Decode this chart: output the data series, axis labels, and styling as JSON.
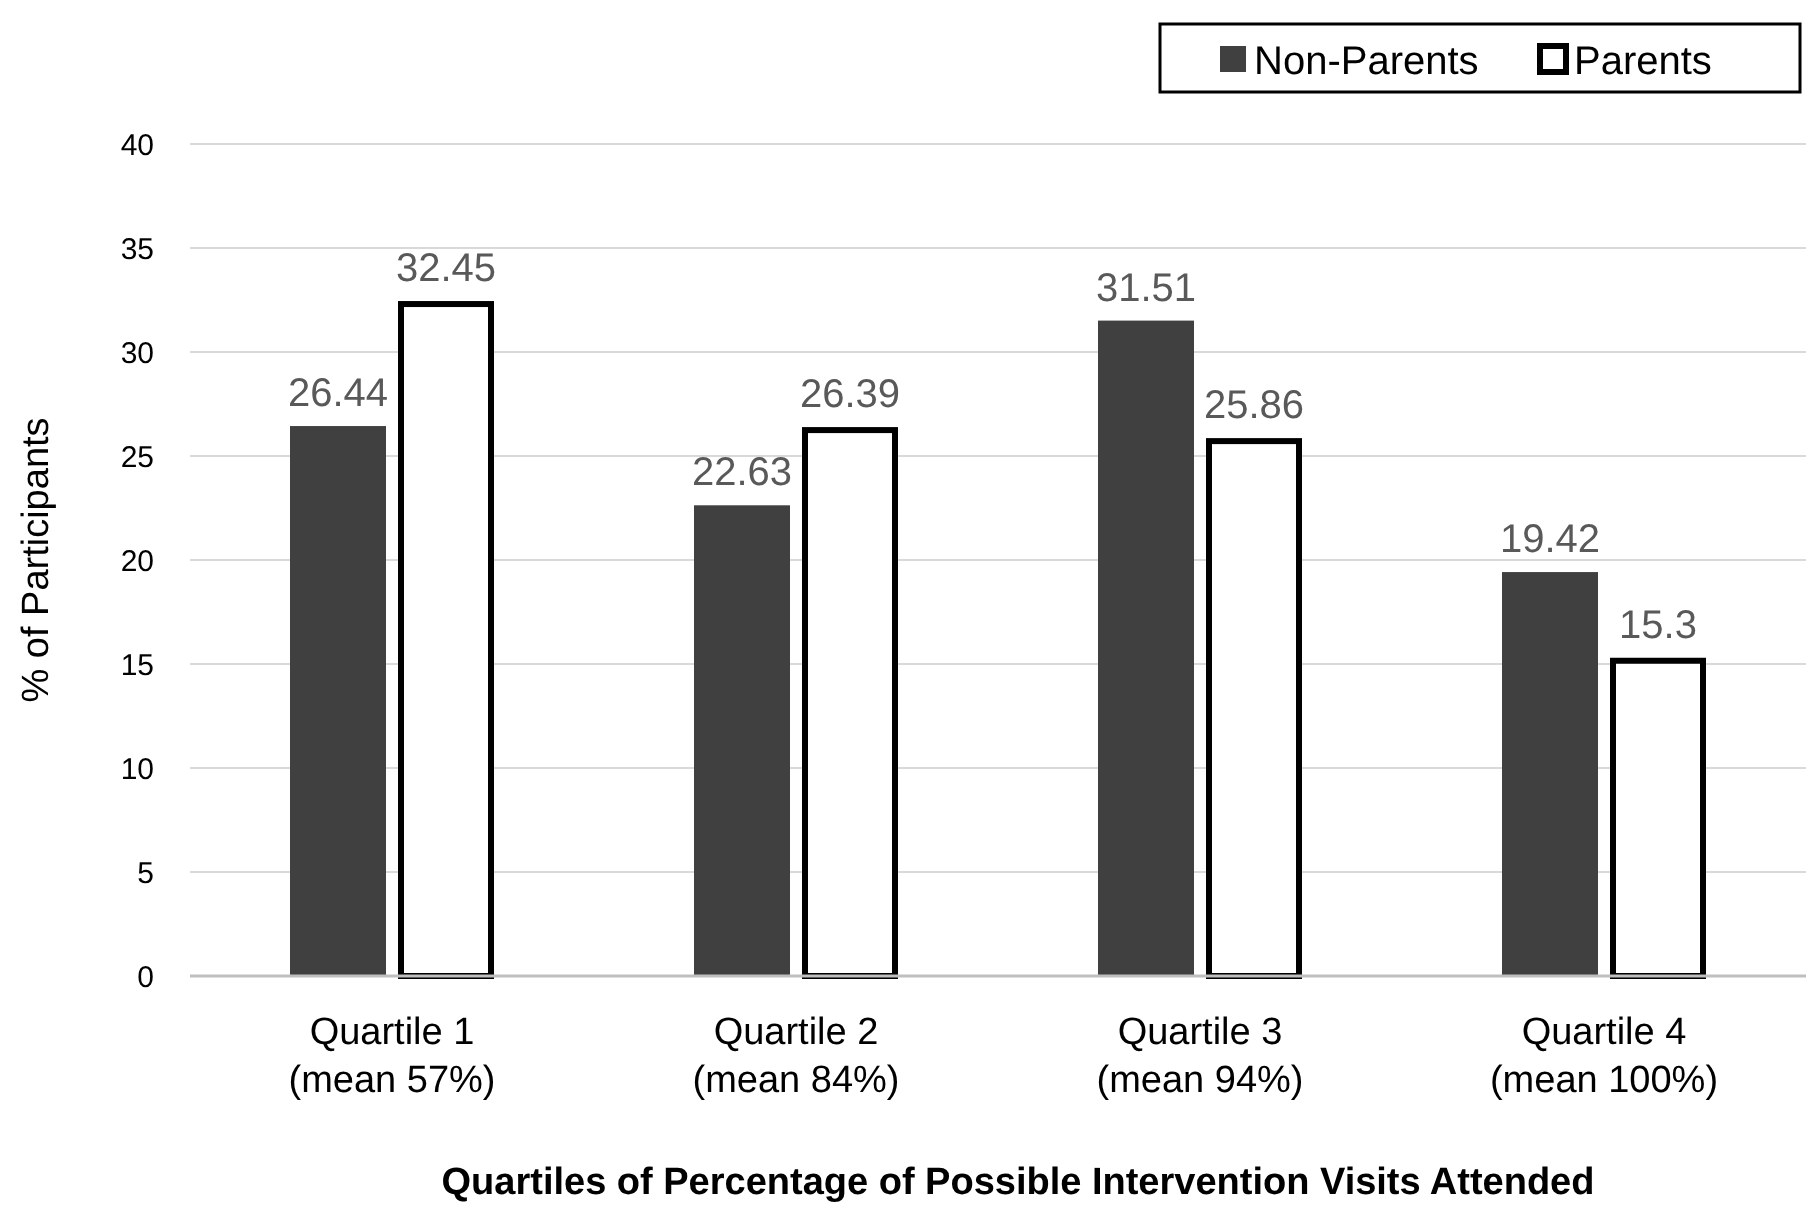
{
  "chart_data": {
    "type": "bar",
    "xlabel": "Quartiles of Percentage of Possible Intervention Visits Attended",
    "ylabel": "% of Participants",
    "categories": [
      "Quartile 1\n(mean 57%)",
      "Quartile 2\n(mean 84%)",
      "Quartile 3\n(mean 94%)",
      "Quartile 4\n(mean 100%)"
    ],
    "series": [
      {
        "name": "Non-Parents",
        "color": "#404040",
        "values": [
          26.44,
          22.63,
          31.51,
          19.42
        ]
      },
      {
        "name": "Parents",
        "color": "#ffffff",
        "values": [
          32.45,
          26.39,
          25.86,
          15.3
        ]
      }
    ],
    "ylim": [
      0,
      40
    ],
    "yticks": [
      0,
      5,
      10,
      15,
      20,
      25,
      30,
      35,
      40
    ],
    "grid": "y",
    "legend": "top right",
    "data_labels": true
  }
}
